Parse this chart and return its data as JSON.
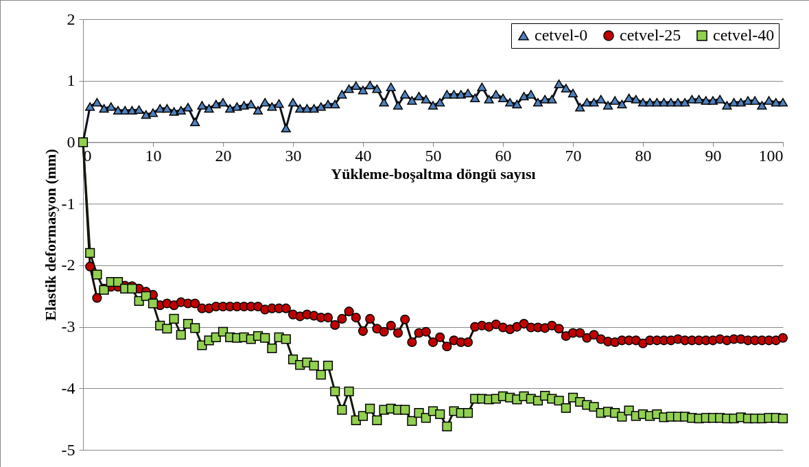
{
  "chart_data": {
    "type": "line",
    "xlabel": "Yükleme-boşaltma döngü sayısı",
    "ylabel": "Elastik deformasyon (mm)",
    "x": [
      0,
      1,
      2,
      3,
      4,
      5,
      6,
      7,
      8,
      9,
      10,
      11,
      12,
      13,
      14,
      15,
      16,
      17,
      18,
      19,
      20,
      21,
      22,
      23,
      24,
      25,
      26,
      27,
      28,
      29,
      30,
      31,
      32,
      33,
      34,
      35,
      36,
      37,
      38,
      39,
      40,
      41,
      42,
      43,
      44,
      45,
      46,
      47,
      48,
      49,
      50,
      51,
      52,
      53,
      54,
      55,
      56,
      57,
      58,
      59,
      60,
      61,
      62,
      63,
      64,
      65,
      66,
      67,
      68,
      69,
      70,
      71,
      72,
      73,
      74,
      75,
      76,
      77,
      78,
      79,
      80,
      81,
      82,
      83,
      84,
      85,
      86,
      87,
      88,
      89,
      90,
      91,
      92,
      93,
      94,
      95,
      96,
      97,
      98,
      99,
      100
    ],
    "series": [
      {
        "name": "cetvel-0",
        "color": "#4f81bd",
        "marker": "triangle",
        "values": [
          0,
          0.58,
          0.65,
          0.55,
          0.58,
          0.52,
          0.52,
          0.52,
          0.53,
          0.45,
          0.48,
          0.55,
          0.55,
          0.5,
          0.52,
          0.57,
          0.33,
          0.6,
          0.55,
          0.62,
          0.65,
          0.55,
          0.58,
          0.6,
          0.62,
          0.52,
          0.65,
          0.58,
          0.63,
          0.23,
          0.65,
          0.55,
          0.55,
          0.55,
          0.58,
          0.62,
          0.62,
          0.78,
          0.87,
          0.92,
          0.85,
          0.93,
          0.87,
          0.65,
          0.9,
          0.6,
          0.78,
          0.68,
          0.75,
          0.7,
          0.6,
          0.65,
          0.78,
          0.78,
          0.78,
          0.8,
          0.72,
          0.9,
          0.7,
          0.78,
          0.72,
          0.65,
          0.62,
          0.75,
          0.78,
          0.65,
          0.7,
          0.7,
          0.95,
          0.88,
          0.8,
          0.57,
          0.65,
          0.65,
          0.7,
          0.6,
          0.68,
          0.62,
          0.72,
          0.7,
          0.65,
          0.65,
          0.65,
          0.65,
          0.65,
          0.65,
          0.65,
          0.7,
          0.7,
          0.68,
          0.68,
          0.7,
          0.6,
          0.65,
          0.65,
          0.68,
          0.68,
          0.6,
          0.68,
          0.65,
          0.65
        ]
      },
      {
        "name": "cetvel-25",
        "color": "#c00000",
        "marker": "circle",
        "values": [
          0,
          -2.02,
          -2.53,
          -2.38,
          -2.35,
          -2.35,
          -2.33,
          -2.34,
          -2.38,
          -2.43,
          -2.48,
          -2.65,
          -2.62,
          -2.65,
          -2.6,
          -2.62,
          -2.62,
          -2.7,
          -2.7,
          -2.67,
          -2.67,
          -2.67,
          -2.67,
          -2.67,
          -2.67,
          -2.67,
          -2.72,
          -2.7,
          -2.7,
          -2.7,
          -2.8,
          -2.83,
          -2.8,
          -2.82,
          -2.85,
          -2.85,
          -2.97,
          -2.87,
          -2.75,
          -2.85,
          -3.07,
          -2.87,
          -3.03,
          -3.08,
          -2.98,
          -3.1,
          -2.88,
          -3.25,
          -3.1,
          -3.08,
          -3.25,
          -3.17,
          -3.32,
          -3.22,
          -3.25,
          -3.25,
          -3.0,
          -2.98,
          -3.0,
          -2.96,
          -3.01,
          -3.04,
          -3.0,
          -2.95,
          -3.01,
          -3.01,
          -3.02,
          -2.98,
          -3.03,
          -3.15,
          -3.1,
          -3.1,
          -3.18,
          -3.13,
          -3.2,
          -3.24,
          -3.25,
          -3.22,
          -3.22,
          -3.22,
          -3.27,
          -3.22,
          -3.22,
          -3.22,
          -3.22,
          -3.2,
          -3.22,
          -3.22,
          -3.22,
          -3.22,
          -3.22,
          -3.2,
          -3.22,
          -3.2,
          -3.2,
          -3.22,
          -3.22,
          -3.22,
          -3.22,
          -3.22,
          -3.18
        ]
      },
      {
        "name": "cetvel-40",
        "color": "#92d050",
        "marker": "square",
        "values": [
          0,
          -1.8,
          -2.15,
          -2.4,
          -2.27,
          -2.27,
          -2.38,
          -2.38,
          -2.58,
          -2.5,
          -2.62,
          -2.98,
          -3.03,
          -2.87,
          -3.13,
          -2.95,
          -3.02,
          -3.3,
          -3.22,
          -3.17,
          -3.08,
          -3.17,
          -3.18,
          -3.17,
          -3.2,
          -3.15,
          -3.18,
          -3.35,
          -3.17,
          -3.2,
          -3.53,
          -3.62,
          -3.58,
          -3.63,
          -3.78,
          -3.63,
          -4.05,
          -4.35,
          -4.05,
          -4.52,
          -4.45,
          -4.33,
          -4.52,
          -4.35,
          -4.33,
          -4.35,
          -4.35,
          -4.53,
          -4.4,
          -4.48,
          -4.37,
          -4.42,
          -4.62,
          -4.37,
          -4.4,
          -4.4,
          -4.17,
          -4.17,
          -4.18,
          -4.17,
          -4.13,
          -4.15,
          -4.18,
          -4.13,
          -4.17,
          -4.2,
          -4.12,
          -4.17,
          -4.2,
          -4.32,
          -4.15,
          -4.22,
          -4.27,
          -4.3,
          -4.4,
          -4.38,
          -4.4,
          -4.46,
          -4.36,
          -4.45,
          -4.42,
          -4.45,
          -4.42,
          -4.47,
          -4.46,
          -4.46,
          -4.46,
          -4.48,
          -4.49,
          -4.48,
          -4.48,
          -4.48,
          -4.49,
          -4.49,
          -4.47,
          -4.49,
          -4.49,
          -4.49,
          -4.48,
          -4.48,
          -4.49
        ]
      }
    ],
    "xlim": [
      0,
      100
    ],
    "xticks": [
      0,
      10,
      20,
      30,
      40,
      50,
      60,
      70,
      80,
      90,
      100
    ],
    "ylim": [
      -5,
      2
    ],
    "yticks": [
      -5,
      -4,
      -3,
      -2,
      -1,
      0,
      1,
      2
    ],
    "grid": "y",
    "legend": "top right",
    "line_style": "solid"
  }
}
